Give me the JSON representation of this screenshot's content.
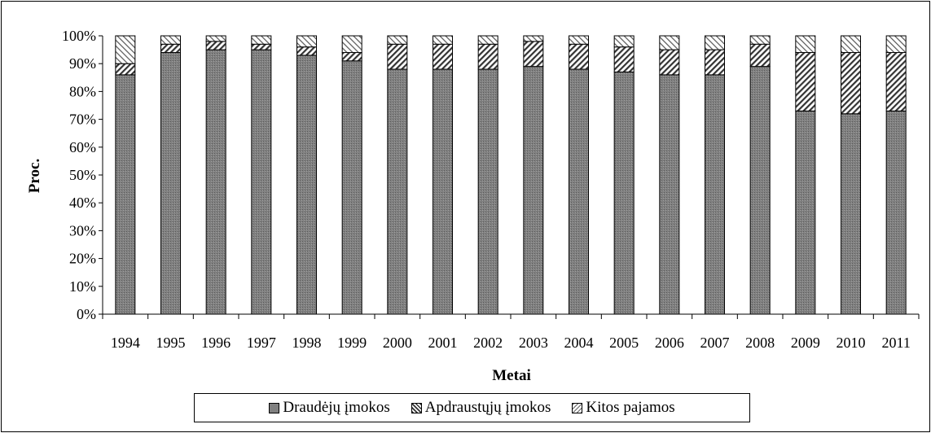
{
  "chart_data": {
    "type": "bar",
    "stacked": true,
    "percent": true,
    "xlabel": "Metai",
    "ylabel": "Proc.",
    "ylim": [
      0,
      100
    ],
    "yticks": [
      "0%",
      "10%",
      "20%",
      "30%",
      "40%",
      "50%",
      "60%",
      "70%",
      "80%",
      "90%",
      "100%"
    ],
    "grid": false,
    "legend_position": "bottom",
    "categories": [
      "1994",
      "1995",
      "1996",
      "1997",
      "1998",
      "1999",
      "2000",
      "2001",
      "2002",
      "2003",
      "2004",
      "2005",
      "2006",
      "2007",
      "2008",
      "2009",
      "2010",
      "2011"
    ],
    "series": [
      {
        "name": "Draudėjų įmokos",
        "pattern": "dots",
        "values": [
          86,
          94,
          95,
          95,
          93,
          91,
          88,
          88,
          88,
          89,
          88,
          87,
          86,
          86,
          89,
          73,
          72,
          73
        ]
      },
      {
        "name": "Apdraustųjų įmokos",
        "pattern": "diagonal",
        "values": [
          4,
          3,
          3,
          2,
          3,
          3,
          9,
          9,
          9,
          9,
          9,
          9,
          9,
          9,
          8,
          21,
          22,
          21
        ]
      },
      {
        "name": "Kitos pajamos",
        "pattern": "light-diagonal",
        "values": [
          10,
          3,
          2,
          3,
          4,
          6,
          3,
          3,
          3,
          2,
          3,
          4,
          5,
          5,
          3,
          6,
          6,
          6
        ]
      }
    ]
  },
  "legend": {
    "items": [
      {
        "label": "Draudėjų įmokos"
      },
      {
        "label": "Apdraustųjų įmokos"
      },
      {
        "label": "Kitos pajamos"
      }
    ]
  }
}
